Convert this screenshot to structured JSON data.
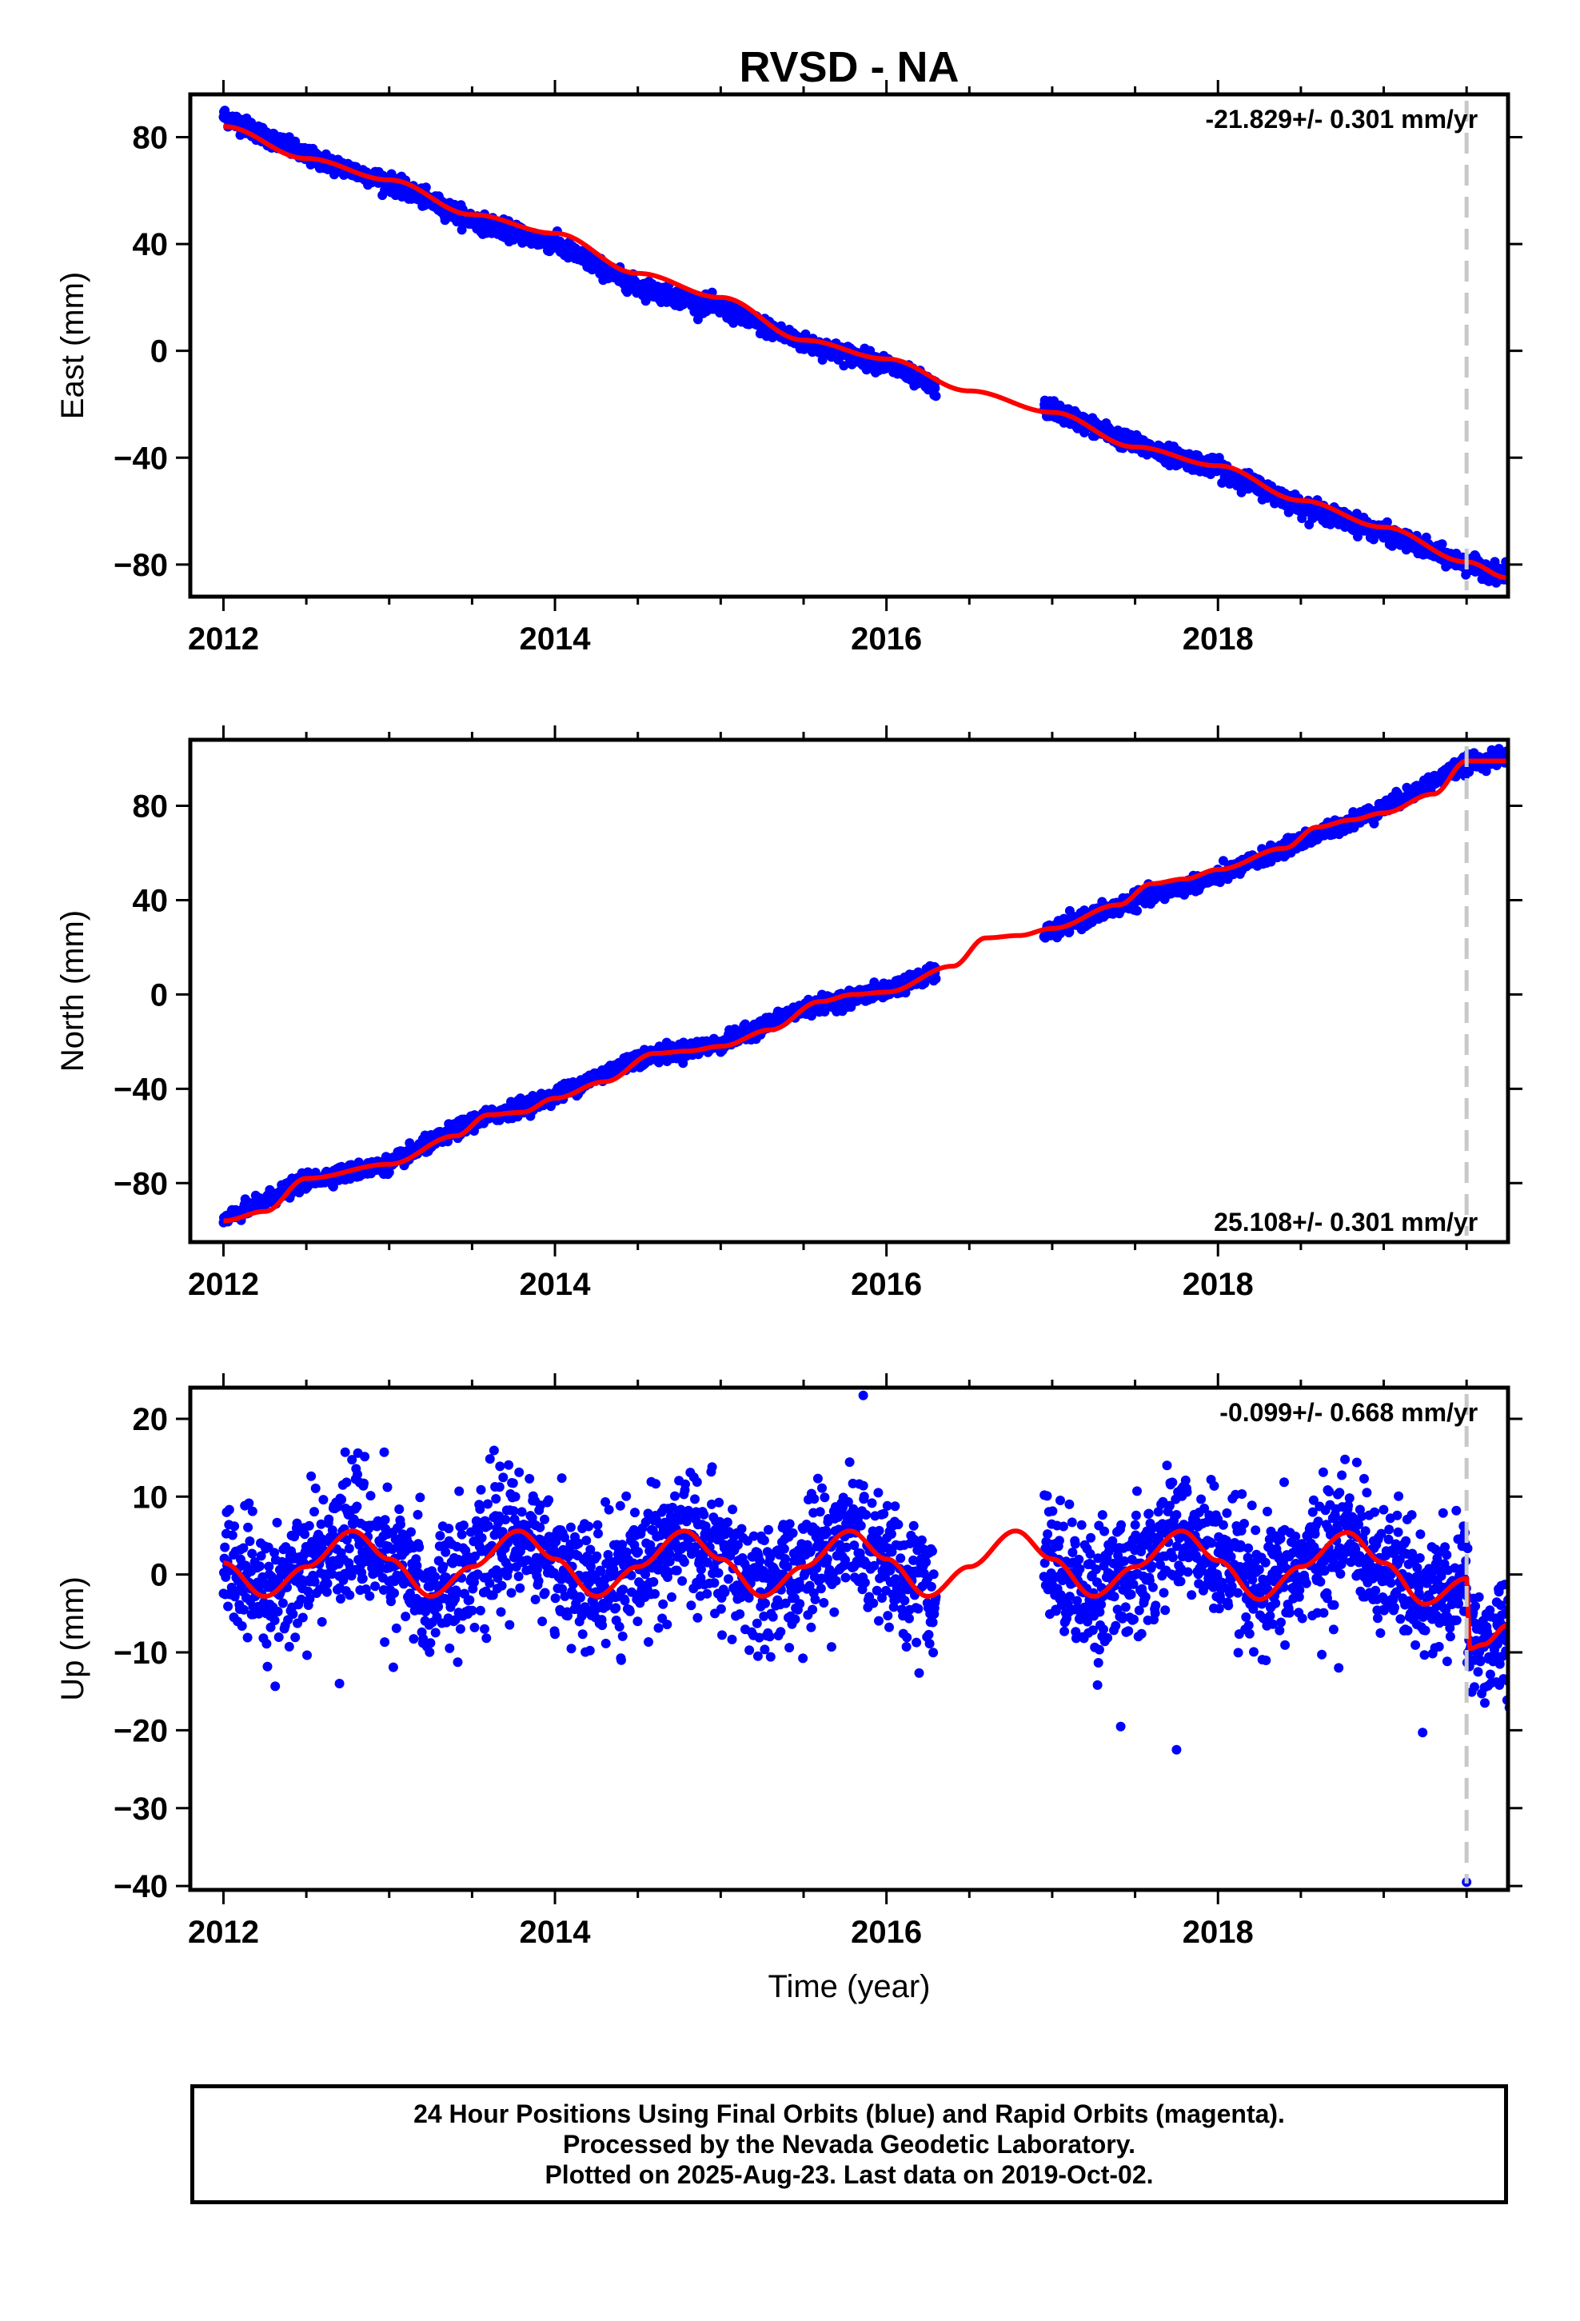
{
  "chart_data": [
    {
      "type": "scatter",
      "title": "RVSD - NA",
      "ylabel": "East (mm)",
      "xlabel": "",
      "xlim": [
        2011.8,
        2019.75
      ],
      "ylim": [
        -92,
        96
      ],
      "xticks": [
        2012,
        2014,
        2016,
        2018
      ],
      "yticks": [
        80,
        40,
        0,
        -40,
        -80
      ],
      "tick_labels_x": [
        "2012",
        "2014",
        "2016",
        "2018"
      ],
      "tick_labels_y": [
        "80",
        "40",
        "0",
        "−40",
        "−80"
      ],
      "rate_label": "-21.829+/- 0.301 mm/yr",
      "rate_position": "top-right",
      "series": [
        {
          "color": "#0000ff",
          "marker": "dot",
          "segments": [
            [
              2012.0,
              2016.3
            ],
            [
              2016.95,
              2019.76
            ]
          ],
          "x": [
            2012.0,
            2012.5,
            2013.0,
            2013.5,
            2014.0,
            2014.5,
            2015.0,
            2015.5,
            2016.0,
            2016.3,
            2017.0,
            2017.5,
            2018.0,
            2018.5,
            2019.0,
            2019.5,
            2019.76
          ],
          "y": [
            88,
            73,
            63,
            49,
            40,
            24,
            16,
            3,
            -5,
            -14,
            -22,
            -35,
            -44,
            -58,
            -68,
            -80,
            -84
          ]
        },
        {
          "color": "#ff0000",
          "type": "line",
          "x": [
            2012.0,
            2012.5,
            2013.0,
            2013.5,
            2014.0,
            2014.5,
            2015.0,
            2015.5,
            2016.0,
            2016.5,
            2017.0,
            2017.5,
            2018.0,
            2018.5,
            2019.0,
            2019.5,
            2019.75
          ],
          "y": [
            84,
            72,
            64,
            51,
            44,
            29,
            20,
            4,
            -3,
            -15,
            -23,
            -36,
            -43,
            -56,
            -66,
            -79,
            -85
          ]
        }
      ],
      "vline_x": 2019.5
    },
    {
      "type": "scatter",
      "title": "",
      "ylabel": "North (mm)",
      "xlabel": "",
      "xlim": [
        2011.8,
        2019.75
      ],
      "ylim": [
        -105,
        108
      ],
      "xticks": [
        2012,
        2014,
        2016,
        2018
      ],
      "yticks": [
        80,
        40,
        0,
        -40,
        -80
      ],
      "tick_labels_x": [
        "2012",
        "2014",
        "2016",
        "2018"
      ],
      "tick_labels_y": [
        "80",
        "40",
        "0",
        "−40",
        "−80"
      ],
      "rate_label": "25.108+/- 0.301 mm/yr",
      "rate_position": "bottom-right",
      "series": [
        {
          "color": "#0000ff",
          "marker": "dot",
          "segments": [
            [
              2012.0,
              2016.3
            ],
            [
              2016.95,
              2019.76
            ]
          ],
          "x": [
            2012.0,
            2012.5,
            2013.0,
            2013.5,
            2014.0,
            2014.5,
            2015.0,
            2015.5,
            2016.0,
            2016.3,
            2017.0,
            2017.5,
            2018.0,
            2018.5,
            2019.0,
            2019.5,
            2019.76
          ],
          "y": [
            -96,
            -79,
            -72,
            -54,
            -43,
            -27,
            -21,
            -6,
            2,
            9,
            27,
            40,
            50,
            65,
            79,
            98,
            101
          ]
        },
        {
          "color": "#ff0000",
          "type": "line",
          "x": [
            2012.0,
            2012.25,
            2012.5,
            2013.0,
            2013.4,
            2013.6,
            2013.8,
            2014.0,
            2014.3,
            2014.6,
            2014.8,
            2015.0,
            2015.3,
            2015.6,
            2015.8,
            2016.0,
            2016.4,
            2016.6,
            2016.8,
            2017.0,
            2017.4,
            2017.6,
            2017.8,
            2018.0,
            2018.4,
            2018.6,
            2018.8,
            2019.0,
            2019.3,
            2019.5,
            2019.75
          ],
          "y": [
            -96,
            -92,
            -78,
            -72,
            -60,
            -51,
            -50,
            -44,
            -37,
            -25,
            -24,
            -22,
            -15,
            -3,
            0,
            1,
            12,
            24,
            25,
            28,
            38,
            47,
            49,
            53,
            62,
            71,
            74,
            77,
            85,
            99,
            99
          ]
        }
      ],
      "vline_x": 2019.5
    },
    {
      "type": "scatter",
      "title": "",
      "ylabel": "Up (mm)",
      "xlabel": "Time (year)",
      "xlim": [
        2011.8,
        2019.75
      ],
      "ylim": [
        -40.5,
        24
      ],
      "xticks": [
        2012,
        2014,
        2016,
        2018
      ],
      "yticks": [
        20,
        10,
        0,
        -10,
        -20,
        -30,
        -40
      ],
      "tick_labels_x": [
        "2012",
        "2014",
        "2016",
        "2018"
      ],
      "tick_labels_y": [
        "20",
        "10",
        "0",
        "−10",
        "−20",
        "−30",
        "−40"
      ],
      "rate_label": "-0.099+/- 0.668 mm/yr",
      "rate_position": "top-right",
      "series": [
        {
          "color": "#0000ff",
          "marker": "dot",
          "segments": [
            [
              2012.0,
              2016.3
            ],
            [
              2016.95,
              2019.76
            ]
          ],
          "seasonal_amplitude_mm": 4.5,
          "scatter_sd_mm": 4.0,
          "outliers": [
            {
              "x": 2015.86,
              "y": 23
            },
            {
              "x": 2017.75,
              "y": -22.5
            },
            {
              "x": 2019.5,
              "y": -39.5
            },
            {
              "x": 2012.7,
              "y": -14
            },
            {
              "x": 2014.4,
              "y": -11
            }
          ]
        },
        {
          "color": "#ff0000",
          "type": "line",
          "x": [
            2012.0,
            2012.25,
            2012.5,
            2012.78,
            2013.0,
            2013.25,
            2013.5,
            2013.78,
            2014.0,
            2014.25,
            2014.5,
            2014.78,
            2015.0,
            2015.25,
            2015.5,
            2015.78,
            2016.0,
            2016.25,
            2016.5,
            2016.78,
            2017.0,
            2017.25,
            2017.5,
            2017.78,
            2018.0,
            2018.25,
            2018.5,
            2018.78,
            2019.0,
            2019.25,
            2019.5,
            2019.52,
            2019.6,
            2019.75
          ],
          "y": [
            1.5,
            -2.8,
            1,
            5.6,
            2,
            -2.8,
            1,
            5.6,
            2,
            -2.8,
            1,
            5.6,
            2,
            -2.8,
            1,
            5.6,
            2,
            -2.8,
            1,
            5.6,
            2,
            -2.8,
            1,
            5.6,
            1.8,
            -3.2,
            1,
            5.4,
            1.5,
            -3.8,
            -0.5,
            -9.5,
            -9,
            -6.5
          ]
        }
      ],
      "vline_x": 2019.5
    }
  ],
  "footer": {
    "line1": "24 Hour Positions Using Final Orbits (blue) and Rapid Orbits (magenta).",
    "line2": "Processed by the Nevada Geodetic Laboratory.",
    "line3": "Plotted on 2025-Aug-23. Last data on 2019-Oct-02."
  }
}
